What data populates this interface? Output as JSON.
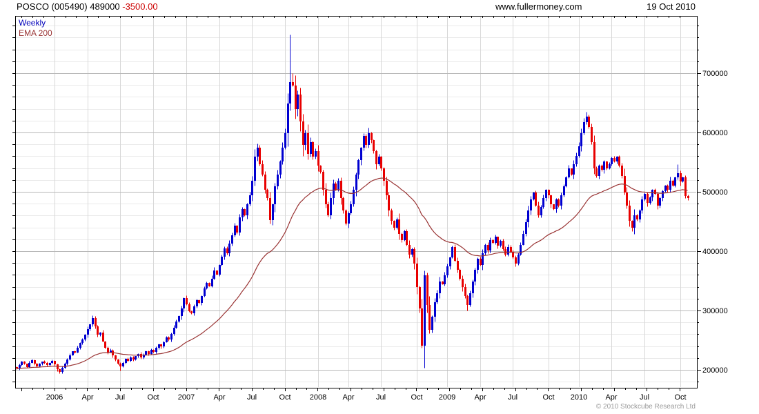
{
  "header": {
    "symbol": "POSCO (005490)",
    "last_price": "489000",
    "change": "-3500.00",
    "website": "www.fullermoney.com",
    "date": "19 Oct 2010"
  },
  "legend": {
    "timeframe": "Weekly",
    "overlay": "EMA 200"
  },
  "footer": {
    "copyright": "© 2010 Stockcube Research Ltd"
  },
  "colors": {
    "up_candle": "#0000d0",
    "down_candle": "#e80000",
    "ema_line": "#993333",
    "change_text": "#cc0000",
    "grid_minor": "#eaeaea",
    "grid_major": "#b8b8b8",
    "grid_vertical": "#d8d8d8",
    "axis": "#000000",
    "copyright_text": "#9a9a9a"
  },
  "chart_data": {
    "type": "candlestick",
    "interval": "weekly",
    "title": "POSCO (005490)",
    "last_close": 489000,
    "change": -3500,
    "y_axis": {
      "side": "right",
      "tick_labels": [
        700000,
        600000,
        500000,
        400000,
        300000,
        200000
      ],
      "minor_step": 20000,
      "visible_range": [
        170000,
        796000
      ]
    },
    "x_axis": {
      "labels": [
        {
          "text": "2006",
          "week": 15
        },
        {
          "text": "Apr",
          "week": 28
        },
        {
          "text": "Jul",
          "week": 41
        },
        {
          "text": "Oct",
          "week": 54
        },
        {
          "text": "2007",
          "week": 67
        },
        {
          "text": "Apr",
          "week": 80
        },
        {
          "text": "Jul",
          "week": 93
        },
        {
          "text": "Oct",
          "week": 106
        },
        {
          "text": "2008",
          "week": 119
        },
        {
          "text": "Apr",
          "week": 131
        },
        {
          "text": "Jul",
          "week": 144
        },
        {
          "text": "Oct",
          "week": 158
        },
        {
          "text": "2009",
          "week": 170
        },
        {
          "text": "Apr",
          "week": 183
        },
        {
          "text": "Jul",
          "week": 196
        },
        {
          "text": "Oct",
          "week": 210
        },
        {
          "text": "2010",
          "week": 222
        },
        {
          "text": "Apr",
          "week": 235
        },
        {
          "text": "Jul",
          "week": 248
        },
        {
          "text": "Oct",
          "week": 262
        }
      ]
    },
    "first_open": 205000,
    "closes": [
      202000,
      208000,
      214000,
      210000,
      205000,
      212000,
      216000,
      210000,
      206000,
      210000,
      214000,
      212000,
      208000,
      212000,
      215000,
      209000,
      201000,
      197000,
      204000,
      211000,
      217000,
      225000,
      231000,
      229000,
      237000,
      245000,
      251000,
      259000,
      269000,
      277000,
      287000,
      273000,
      259000,
      263000,
      248000,
      237000,
      229000,
      233000,
      224000,
      217000,
      211000,
      206000,
      212000,
      219000,
      215000,
      221000,
      217000,
      223000,
      227000,
      221000,
      225000,
      231000,
      227000,
      234000,
      230000,
      237000,
      243000,
      239000,
      247000,
      255000,
      251000,
      261000,
      271000,
      281000,
      291000,
      304000,
      321000,
      311000,
      299000,
      295000,
      307000,
      317000,
      313000,
      325000,
      337000,
      347000,
      341000,
      354000,
      367000,
      361000,
      377000,
      391000,
      405000,
      397000,
      413000,
      427000,
      443000,
      431000,
      457000,
      471000,
      461000,
      479000,
      494000,
      519000,
      559000,
      574000,
      547000,
      529000,
      504000,
      489000,
      452000,
      479000,
      509000,
      529000,
      551000,
      574000,
      599000,
      649000,
      685000,
      679000,
      639000,
      664000,
      619000,
      579000,
      599000,
      564000,
      584000,
      559000,
      569000,
      544000,
      534000,
      504000,
      479000,
      461000,
      489000,
      514000,
      504000,
      519000,
      489000,
      469000,
      447000,
      464000,
      479000,
      504000,
      529000,
      554000,
      574000,
      594000,
      579000,
      599000,
      587000,
      569000,
      547000,
      559000,
      539000,
      519000,
      494000,
      469000,
      451000,
      439000,
      454000,
      429000,
      419000,
      434000,
      411000,
      394000,
      404000,
      379000,
      339000,
      304000,
      241000,
      359000,
      309000,
      267000,
      289000,
      314000,
      329000,
      349000,
      344000,
      359000,
      374000,
      389000,
      407000,
      384000,
      369000,
      354000,
      339000,
      324000,
      309000,
      329000,
      349000,
      369000,
      387000,
      377000,
      397000,
      411000,
      401000,
      419000,
      414000,
      424000,
      409000,
      417000,
      404000,
      394000,
      407000,
      399000,
      389000,
      379000,
      394000,
      411000,
      429000,
      449000,
      469000,
      487000,
      499000,
      477000,
      461000,
      474000,
      489000,
      504000,
      494000,
      479000,
      471000,
      487000,
      477000,
      494000,
      509000,
      524000,
      539000,
      529000,
      547000,
      561000,
      577000,
      599000,
      617000,
      627000,
      609000,
      584000,
      539000,
      527000,
      544000,
      537000,
      551000,
      539000,
      547000,
      557000,
      551000,
      559000,
      544000,
      527000,
      499000,
      477000,
      451000,
      439000,
      461000,
      454000,
      469000,
      487000,
      497000,
      481000,
      491000,
      504000,
      497000,
      477000,
      489000,
      501000,
      511000,
      504000,
      519000,
      511000,
      524000,
      531000,
      517000,
      524000,
      492500,
      489000
    ],
    "extremes": {
      "17": {
        "low": 194000
      },
      "30": {
        "high": 292000
      },
      "41": {
        "low": 199000
      },
      "95": {
        "high": 581000
      },
      "100": {
        "low": 447000
      },
      "108": {
        "high": 765000
      },
      "109": {
        "high": 700000
      },
      "139": {
        "high": 608000
      },
      "160": {
        "low": 237000
      },
      "161": {
        "high": 368000
      },
      "178": {
        "low": 300000
      },
      "225": {
        "high": 635000
      },
      "243": {
        "low": 434000
      },
      "261": {
        "high": 546000
      },
      "265": {
        "low": 486000
      }
    },
    "ema": {
      "label": "EMA 200",
      "period": 200,
      "weekly_alpha": 0.042,
      "seed": 202000
    }
  }
}
